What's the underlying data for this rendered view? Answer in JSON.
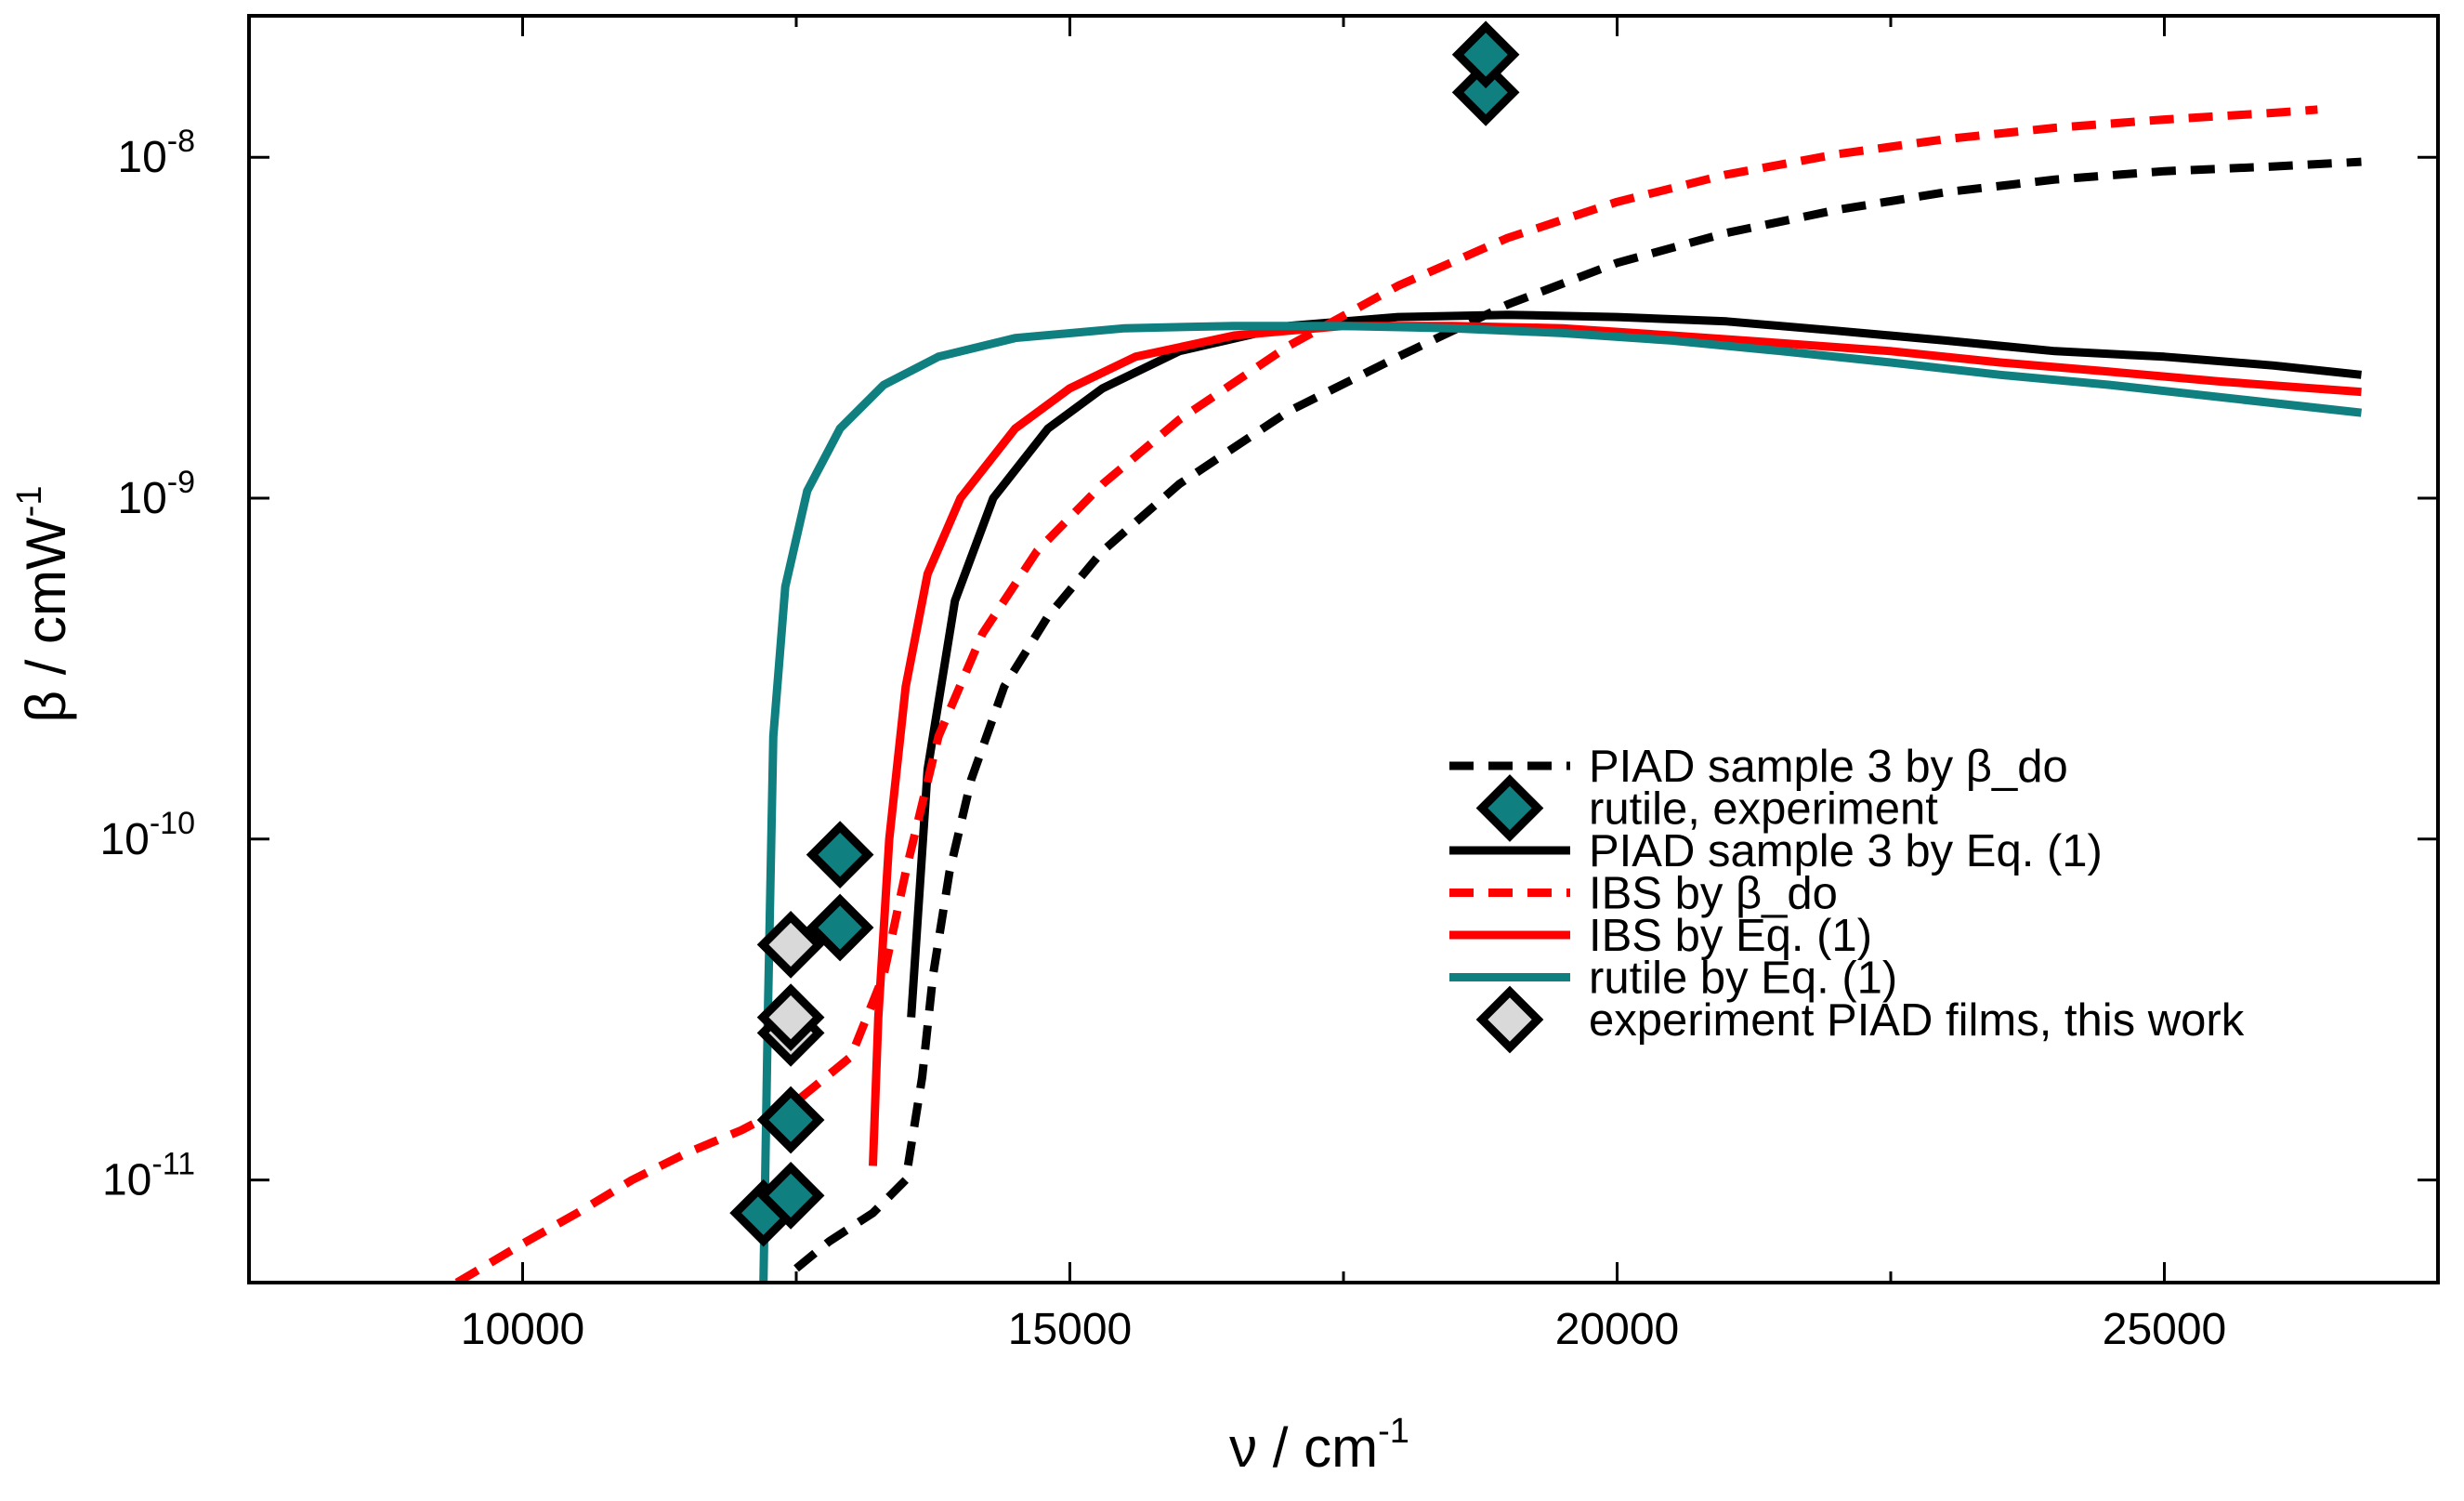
{
  "chart_data": {
    "type": "line",
    "title": "",
    "xlabel": "ν / cm",
    "xlabel_sup": "-1",
    "ylabel": "β / cmW",
    "ylabel_sup": "-1",
    "xlim": [
      7500,
      27500
    ],
    "ylim": [
      5e-12,
      2.6e-08
    ],
    "yscale": "log",
    "x_ticks": [
      {
        "value": 10000,
        "label": "10000"
      },
      {
        "value": 15000,
        "label": "15000"
      },
      {
        "value": 20000,
        "label": "20000"
      },
      {
        "value": 25000,
        "label": "25000"
      }
    ],
    "y_ticks": [
      {
        "value": 1e-11,
        "base": "10",
        "exp": "-11"
      },
      {
        "value": 1e-10,
        "base": "10",
        "exp": "-10"
      },
      {
        "value": 1e-09,
        "base": "10",
        "exp": "-9"
      },
      {
        "value": 1e-08,
        "base": "10",
        "exp": "-8"
      }
    ],
    "legend_position": "bottom-right",
    "series": [
      {
        "name": "PIAD sample 3 by β_do",
        "kind": "line",
        "color": "#000000",
        "dashed": true,
        "points": [
          [
            12500,
            5.5e-12
          ],
          [
            12800,
            6.6e-12
          ],
          [
            13200,
            8e-12
          ],
          [
            13500,
            1e-11
          ],
          [
            13650,
            2e-11
          ],
          [
            13750,
            4e-11
          ],
          [
            13900,
            8e-11
          ],
          [
            14100,
            1.5e-10
          ],
          [
            14400,
            2.8e-10
          ],
          [
            14800,
            4.5e-10
          ],
          [
            15300,
            7e-10
          ],
          [
            16000,
            1.1e-09
          ],
          [
            17000,
            1.8e-09
          ],
          [
            18000,
            2.6e-09
          ],
          [
            19000,
            3.7e-09
          ],
          [
            20000,
            4.9e-09
          ],
          [
            21000,
            6e-09
          ],
          [
            22000,
            7e-09
          ],
          [
            23000,
            7.9e-09
          ],
          [
            24000,
            8.6e-09
          ],
          [
            25000,
            9.1e-09
          ],
          [
            26000,
            9.4e-09
          ],
          [
            26800,
            9.7e-09
          ]
        ]
      },
      {
        "name": "rutile, experiment",
        "kind": "marker",
        "color": "#107f80",
        "points": [
          [
            12200,
            8e-12
          ],
          [
            12450,
            9e-12
          ],
          [
            12450,
            1.5e-11
          ],
          [
            12900,
            5.5e-11
          ],
          [
            12900,
            9e-11
          ],
          [
            18800,
            1.55e-08
          ],
          [
            18800,
            2e-08
          ]
        ]
      },
      {
        "name": "PIAD sample 3 by Eq. (1)",
        "kind": "line",
        "color": "#000000",
        "dashed": false,
        "points": [
          [
            13550,
            3e-11
          ],
          [
            13700,
            1.6e-10
          ],
          [
            13950,
            5e-10
          ],
          [
            14300,
            1e-09
          ],
          [
            14800,
            1.6e-09
          ],
          [
            15300,
            2.1e-09
          ],
          [
            16000,
            2.7e-09
          ],
          [
            17000,
            3.2e-09
          ],
          [
            18000,
            3.4e-09
          ],
          [
            19000,
            3.45e-09
          ],
          [
            20000,
            3.4e-09
          ],
          [
            21000,
            3.3e-09
          ],
          [
            22000,
            3.1e-09
          ],
          [
            23000,
            2.9e-09
          ],
          [
            24000,
            2.7e-09
          ],
          [
            25000,
            2.6e-09
          ],
          [
            26000,
            2.45e-09
          ],
          [
            26800,
            2.3e-09
          ]
        ]
      },
      {
        "name": "IBS by β_do",
        "kind": "line",
        "color": "#ff0000",
        "dashed": true,
        "points": [
          [
            9400,
            5e-12
          ],
          [
            10000,
            6.5e-12
          ],
          [
            10500,
            8e-12
          ],
          [
            11000,
            1e-11
          ],
          [
            11500,
            1.2e-11
          ],
          [
            12000,
            1.4e-11
          ],
          [
            12500,
            1.7e-11
          ],
          [
            13000,
            2.3e-11
          ],
          [
            13300,
            4e-11
          ],
          [
            13500,
            8e-11
          ],
          [
            13800,
            2e-10
          ],
          [
            14200,
            4e-10
          ],
          [
            14700,
            7e-10
          ],
          [
            15300,
            1.1e-09
          ],
          [
            16000,
            1.7e-09
          ],
          [
            17000,
            2.8e-09
          ],
          [
            18000,
            4.2e-09
          ],
          [
            19000,
            5.8e-09
          ],
          [
            20000,
            7.4e-09
          ],
          [
            21000,
            8.9e-09
          ],
          [
            22000,
            1.02e-08
          ],
          [
            23000,
            1.13e-08
          ],
          [
            24000,
            1.22e-08
          ],
          [
            25000,
            1.29e-08
          ],
          [
            26000,
            1.35e-08
          ],
          [
            26400,
            1.38e-08
          ]
        ]
      },
      {
        "name": "IBS by Eq. (1)",
        "kind": "line",
        "color": "#ff0000",
        "dashed": false,
        "points": [
          [
            13200,
            1.1e-11
          ],
          [
            13250,
            3e-11
          ],
          [
            13350,
            1e-10
          ],
          [
            13500,
            2.8e-10
          ],
          [
            13700,
            6e-10
          ],
          [
            14000,
            1e-09
          ],
          [
            14500,
            1.6e-09
          ],
          [
            15000,
            2.1e-09
          ],
          [
            15600,
            2.6e-09
          ],
          [
            16500,
            3e-09
          ],
          [
            17500,
            3.2e-09
          ],
          [
            18500,
            3.2e-09
          ],
          [
            19500,
            3.15e-09
          ],
          [
            20500,
            3e-09
          ],
          [
            21500,
            2.85e-09
          ],
          [
            22500,
            2.7e-09
          ],
          [
            23500,
            2.5e-09
          ],
          [
            24500,
            2.35e-09
          ],
          [
            25500,
            2.2e-09
          ],
          [
            26800,
            2.05e-09
          ]
        ]
      },
      {
        "name": "rutile by Eq. (1)",
        "kind": "line",
        "color": "#107f80",
        "dashed": false,
        "points": [
          [
            12200,
            5e-12
          ],
          [
            12240,
            3e-11
          ],
          [
            12290,
            2e-10
          ],
          [
            12400,
            5.5e-10
          ],
          [
            12600,
            1.05e-09
          ],
          [
            12900,
            1.6e-09
          ],
          [
            13300,
            2.15e-09
          ],
          [
            13800,
            2.6e-09
          ],
          [
            14500,
            2.95e-09
          ],
          [
            15500,
            3.15e-09
          ],
          [
            16500,
            3.2e-09
          ],
          [
            17500,
            3.2e-09
          ],
          [
            18500,
            3.15e-09
          ],
          [
            19500,
            3.05e-09
          ],
          [
            20500,
            2.9e-09
          ],
          [
            21500,
            2.7e-09
          ],
          [
            22500,
            2.5e-09
          ],
          [
            23500,
            2.3e-09
          ],
          [
            24500,
            2.15e-09
          ],
          [
            25500,
            1.98e-09
          ],
          [
            26800,
            1.78e-09
          ]
        ]
      },
      {
        "name": "experiment PIAD films, this work",
        "kind": "marker",
        "color": "#d9d9d9",
        "points": [
          [
            12450,
            2.7e-11
          ],
          [
            12450,
            3e-11
          ],
          [
            12450,
            4.9e-11
          ]
        ]
      }
    ]
  }
}
